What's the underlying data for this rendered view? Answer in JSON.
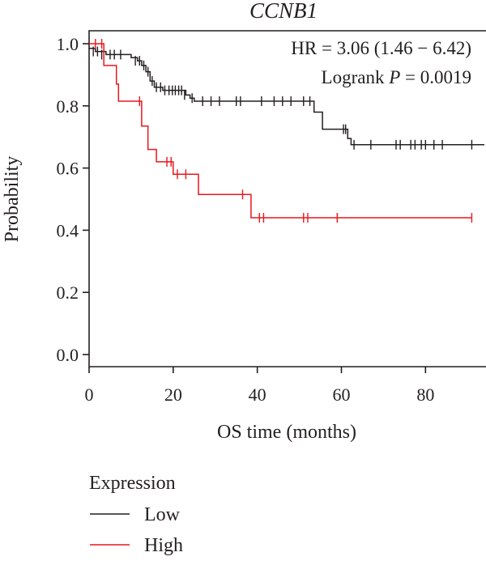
{
  "chart_data": {
    "type": "line",
    "subtype": "kaplan-meier",
    "title": "CCNB1",
    "xlabel": "OS time (months)",
    "ylabel": "Probability",
    "xlim": [
      0,
      94
    ],
    "ylim": [
      0,
      1.04
    ],
    "xticks": [
      0,
      20,
      40,
      60,
      80
    ],
    "yticks": [
      0.0,
      0.2,
      0.4,
      0.6,
      0.8,
      1.0
    ],
    "xtick_labels": [
      "0",
      "20",
      "40",
      "60",
      "80"
    ],
    "ytick_labels": [
      "0.0",
      "0.2",
      "0.4",
      "0.6",
      "0.8",
      "1.0"
    ],
    "grid": false,
    "annotations": {
      "hr_text": "HR = 3.06 (1.46 − 6.42)",
      "logrank_prefix": "Logrank ",
      "logrank_p": "P",
      "logrank_value": " = 0.0019"
    },
    "legend": {
      "title": "Expression",
      "position": "bottom-left"
    },
    "series": [
      {
        "name": "Low",
        "color": "#231f20",
        "steps": [
          [
            0,
            0.985
          ],
          [
            1.5,
            0.975
          ],
          [
            4,
            0.965
          ],
          [
            10,
            0.955
          ],
          [
            11.5,
            0.945
          ],
          [
            12.5,
            0.93
          ],
          [
            13.5,
            0.91
          ],
          [
            14.5,
            0.88
          ],
          [
            15.5,
            0.86
          ],
          [
            17.5,
            0.85
          ],
          [
            23,
            0.835
          ],
          [
            24,
            0.825
          ],
          [
            25,
            0.815
          ],
          [
            53.5,
            0.78
          ],
          [
            55.5,
            0.725
          ],
          [
            61.5,
            0.695
          ],
          [
            62.3,
            0.675
          ],
          [
            94,
            0.675
          ]
        ],
        "censored": [
          [
            1,
            0.975
          ],
          [
            2,
            0.975
          ],
          [
            3,
            0.965
          ],
          [
            5,
            0.965
          ],
          [
            6,
            0.965
          ],
          [
            7.5,
            0.965
          ],
          [
            11,
            0.945
          ],
          [
            12,
            0.945
          ],
          [
            13,
            0.93
          ],
          [
            14,
            0.91
          ],
          [
            15,
            0.88
          ],
          [
            16,
            0.86
          ],
          [
            17,
            0.86
          ],
          [
            18,
            0.85
          ],
          [
            19,
            0.85
          ],
          [
            19.8,
            0.85
          ],
          [
            20.5,
            0.85
          ],
          [
            21.3,
            0.85
          ],
          [
            22,
            0.85
          ],
          [
            22.7,
            0.835
          ],
          [
            24.5,
            0.825
          ],
          [
            27,
            0.815
          ],
          [
            29,
            0.815
          ],
          [
            31,
            0.815
          ],
          [
            35,
            0.815
          ],
          [
            36,
            0.815
          ],
          [
            41,
            0.815
          ],
          [
            44,
            0.815
          ],
          [
            46,
            0.815
          ],
          [
            48,
            0.815
          ],
          [
            51,
            0.815
          ],
          [
            52.5,
            0.815
          ],
          [
            60.5,
            0.725
          ],
          [
            61,
            0.725
          ],
          [
            63,
            0.675
          ],
          [
            67,
            0.675
          ],
          [
            73,
            0.675
          ],
          [
            74,
            0.675
          ],
          [
            76.5,
            0.675
          ],
          [
            77.5,
            0.675
          ],
          [
            79,
            0.675
          ],
          [
            80,
            0.675
          ],
          [
            82,
            0.675
          ],
          [
            84,
            0.675
          ],
          [
            91,
            0.675
          ]
        ]
      },
      {
        "name": "High",
        "color": "#e8171f",
        "steps": [
          [
            0,
            1.0
          ],
          [
            3.5,
            0.93
          ],
          [
            6.5,
            0.87
          ],
          [
            7,
            0.815
          ],
          [
            12.5,
            0.735
          ],
          [
            14,
            0.66
          ],
          [
            16,
            0.62
          ],
          [
            20,
            0.58
          ],
          [
            26,
            0.515
          ],
          [
            38.5,
            0.44
          ],
          [
            91,
            0.44
          ]
        ],
        "censored": [
          [
            1.5,
            1.0
          ],
          [
            3,
            1.0
          ],
          [
            12,
            0.815
          ],
          [
            18.5,
            0.62
          ],
          [
            19.5,
            0.62
          ],
          [
            21,
            0.58
          ],
          [
            23,
            0.58
          ],
          [
            36.5,
            0.515
          ],
          [
            40.5,
            0.44
          ],
          [
            41.5,
            0.44
          ],
          [
            51,
            0.44
          ],
          [
            52,
            0.44
          ],
          [
            59,
            0.44
          ],
          [
            91,
            0.44
          ]
        ]
      }
    ]
  }
}
